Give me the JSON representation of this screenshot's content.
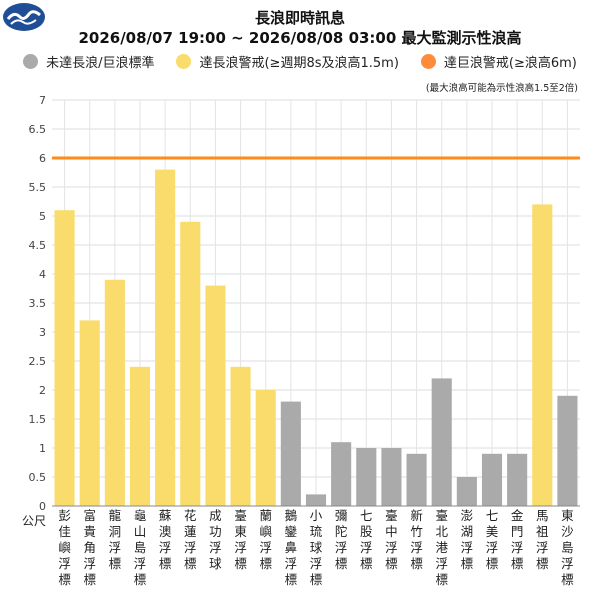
{
  "logo": {
    "icon": "cwa-logo-icon",
    "color": "#1f4e96"
  },
  "header": {
    "title": "長浪即時訊息",
    "subtitle": "2026/08/07 19:00 ~ 2026/08/08 03:00 最大監測示性浪高"
  },
  "legend": [
    {
      "label": "未達長浪/巨浪標準",
      "color": "#aaaaaa"
    },
    {
      "label": "達長浪警戒(≥週期8s及浪高1.5m)",
      "color": "#f9dc6b"
    },
    {
      "label": "達巨浪警戒(≥浪高6m)",
      "color": "#ff8c3a"
    }
  ],
  "note": "(最大浪高可能為示性浪高1.5至2倍)",
  "chart_data": {
    "type": "bar",
    "ylabel": "公尺",
    "ylim": [
      0,
      7
    ],
    "yticks": [
      "0",
      "0.5",
      "1",
      "1.5",
      "2",
      "2.5",
      "3",
      "3.5",
      "4",
      "4.5",
      "5",
      "5.5",
      "6",
      "6.5",
      "7"
    ],
    "threshold": {
      "value": 6,
      "color": "#ff8c1a"
    },
    "grid": true,
    "categories": [
      "彭佳嶼浮標",
      "富貴角浮標",
      "龍洞浮標",
      "龜山島浮標",
      "蘇澳浮標",
      "花蓮浮標",
      "成功浮球",
      "臺東浮標",
      "蘭嶼浮標",
      "鵝鑾鼻浮標",
      "小琉球浮標",
      "彌陀浮標",
      "七股浮標",
      "臺中浮標",
      "新竹浮標",
      "臺北港浮標",
      "澎湖浮標",
      "七美浮標",
      "金門浮標",
      "馬祖浮標",
      "東沙島浮標"
    ],
    "values": [
      5.1,
      3.2,
      3.9,
      2.4,
      5.8,
      4.9,
      3.8,
      2.4,
      2.0,
      1.8,
      0.2,
      1.1,
      1.0,
      1.0,
      0.9,
      2.2,
      0.5,
      0.9,
      0.9,
      5.2,
      1.9
    ],
    "status": [
      "long",
      "long",
      "long",
      "long",
      "long",
      "long",
      "long",
      "long",
      "long",
      "none",
      "none",
      "none",
      "none",
      "none",
      "none",
      "none",
      "none",
      "none",
      "none",
      "long",
      "none"
    ],
    "status_colors": {
      "none": "#aaaaaa",
      "long": "#f9dc6b",
      "huge": "#ff8c3a"
    }
  }
}
